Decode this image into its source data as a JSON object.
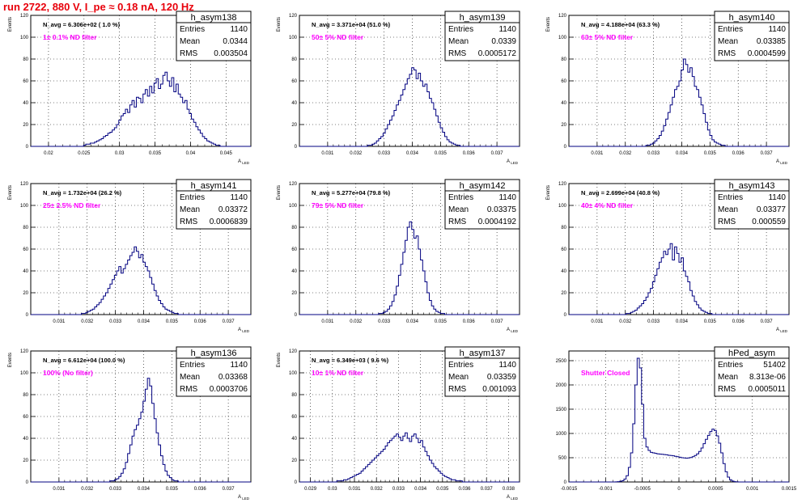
{
  "page_title": "run 2722,   880 V, I_pe ≈ 0.18 nA, 120 Hz",
  "colors": {
    "title": "#e8000b",
    "histogram": "#000080",
    "annotation": "#ff00ff",
    "grid": "#000000",
    "frame": "#000000"
  },
  "stats_labels": {
    "entries": "Entries",
    "mean": "Mean",
    "rms": "RMS"
  },
  "chart_data": [
    {
      "type": "bar",
      "name": "h_asym138",
      "ylabel": "Events",
      "xlabel": "A_LED",
      "xlim": [
        0.0175,
        0.0485
      ],
      "ylim": [
        0,
        120
      ],
      "xticks": [
        "0.02",
        "0.025",
        "0.03",
        "0.035",
        "0.04",
        "0.045"
      ],
      "yticks": [
        "0",
        "20",
        "40",
        "60",
        "80",
        "100",
        "120"
      ],
      "grid": true,
      "nbins": 100,
      "values": [
        0,
        0,
        0,
        0,
        0,
        0,
        0,
        0,
        0,
        0,
        0,
        0,
        0,
        0,
        0,
        0,
        0,
        0,
        0,
        0,
        0,
        0,
        0,
        0,
        1,
        2,
        2,
        3,
        3,
        4,
        5,
        6,
        7,
        9,
        10,
        12,
        13,
        15,
        17,
        20,
        24,
        28,
        30,
        34,
        31,
        38,
        42,
        36,
        45,
        44,
        40,
        48,
        52,
        46,
        55,
        49,
        58,
        62,
        53,
        57,
        65,
        68,
        60,
        55,
        63,
        50,
        57,
        48,
        45,
        40,
        42,
        34,
        30,
        25,
        22,
        18,
        15,
        12,
        9,
        7,
        5,
        4,
        3,
        2,
        1,
        1,
        0,
        0,
        0,
        0,
        0,
        0,
        0,
        0,
        0,
        0,
        0,
        0,
        0,
        0
      ],
      "stats": {
        "entries": "1140",
        "mean": "0.0344",
        "rms": "0.003504"
      },
      "annotations": [
        "N_avg = 6.306e+02 ( 1.0 %)",
        "1± 0.1% ND filter"
      ]
    },
    {
      "type": "bar",
      "name": "h_asym139",
      "ylabel": "Events",
      "xlabel": "A_LED",
      "xlim": [
        0.03,
        0.0378
      ],
      "ylim": [
        0,
        120
      ],
      "xticks": [
        "0.031",
        "0.032",
        "0.033",
        "0.034",
        "0.035",
        "0.036",
        "0.037"
      ],
      "yticks": [
        "0",
        "20",
        "40",
        "60",
        "80",
        "100",
        "120"
      ],
      "grid": true,
      "nbins": 100,
      "values": [
        0,
        0,
        0,
        0,
        0,
        0,
        0,
        0,
        0,
        0,
        0,
        0,
        0,
        0,
        0,
        0,
        0,
        0,
        0,
        0,
        0,
        0,
        0,
        0,
        0,
        0,
        0,
        0,
        0,
        0,
        0,
        1,
        1,
        2,
        3,
        5,
        7,
        9,
        12,
        16,
        20,
        24,
        28,
        33,
        38,
        42,
        47,
        52,
        57,
        62,
        66,
        72,
        70,
        62,
        67,
        60,
        55,
        57,
        50,
        44,
        40,
        34,
        28,
        22,
        17,
        13,
        9,
        6,
        4,
        3,
        2,
        1,
        1,
        0,
        0,
        0,
        0,
        0,
        0,
        0,
        0,
        0,
        0,
        0,
        0,
        0,
        0,
        0,
        0,
        0,
        0,
        0,
        0,
        0,
        0,
        0,
        0,
        0,
        0,
        0
      ],
      "stats": {
        "entries": "1140",
        "mean": "0.0339",
        "rms": "0.0005172"
      },
      "annotations": [
        "N_avg = 3.371e+04 (51.0 %)",
        "50± 5% ND filter"
      ]
    },
    {
      "type": "bar",
      "name": "h_asym140",
      "ylabel": "Events",
      "xlabel": "A_LED",
      "xlim": [
        0.03,
        0.0378
      ],
      "ylim": [
        0,
        120
      ],
      "xticks": [
        "0.031",
        "0.032",
        "0.033",
        "0.034",
        "0.035",
        "0.036",
        "0.037"
      ],
      "yticks": [
        "0",
        "20",
        "40",
        "60",
        "80",
        "100",
        "120"
      ],
      "grid": true,
      "nbins": 100,
      "values": [
        0,
        0,
        0,
        0,
        0,
        0,
        0,
        0,
        0,
        0,
        0,
        0,
        0,
        0,
        0,
        0,
        0,
        0,
        0,
        0,
        0,
        0,
        0,
        0,
        0,
        0,
        0,
        0,
        0,
        0,
        0,
        0,
        0,
        0,
        0,
        1,
        1,
        2,
        3,
        5,
        7,
        10,
        14,
        19,
        25,
        31,
        38,
        45,
        52,
        55,
        60,
        70,
        80,
        75,
        68,
        72,
        64,
        55,
        52,
        45,
        38,
        30,
        22,
        15,
        10,
        6,
        4,
        3,
        2,
        1,
        1,
        0,
        0,
        0,
        0,
        0,
        0,
        0,
        0,
        0,
        0,
        0,
        0,
        0,
        0,
        0,
        0,
        0,
        0,
        0,
        0,
        0,
        0,
        0,
        0,
        0,
        0,
        0,
        0,
        0
      ],
      "stats": {
        "entries": "1140",
        "mean": "0.03385",
        "rms": "0.0004599"
      },
      "annotations": [
        "N_avg = 4.188e+04 (63.3 %)",
        "63± 5% ND filter"
      ]
    },
    {
      "type": "bar",
      "name": "h_asym141",
      "ylabel": "Events",
      "xlabel": "A_LED",
      "xlim": [
        0.03,
        0.0378
      ],
      "ylim": [
        0,
        120
      ],
      "xticks": [
        "0.031",
        "0.032",
        "0.033",
        "0.034",
        "0.035",
        "0.036",
        "0.037"
      ],
      "yticks": [
        "0",
        "20",
        "40",
        "60",
        "80",
        "100",
        "120"
      ],
      "grid": true,
      "nbins": 100,
      "values": [
        0,
        0,
        0,
        0,
        0,
        0,
        0,
        0,
        0,
        0,
        0,
        0,
        0,
        0,
        0,
        0,
        0,
        0,
        0,
        0,
        0,
        0,
        0,
        1,
        1,
        2,
        3,
        4,
        5,
        7,
        9,
        11,
        14,
        17,
        20,
        24,
        28,
        32,
        36,
        40,
        44,
        38,
        42,
        46,
        50,
        54,
        57,
        62,
        58,
        52,
        55,
        48,
        44,
        40,
        34,
        28,
        22,
        17,
        13,
        10,
        7,
        5,
        4,
        3,
        2,
        1,
        1,
        0,
        0,
        0,
        0,
        0,
        0,
        0,
        0,
        0,
        0,
        0,
        0,
        0,
        0,
        0,
        0,
        0,
        0,
        0,
        0,
        0,
        0,
        0,
        0,
        0,
        0,
        0,
        0,
        0,
        0,
        0,
        0,
        0
      ],
      "stats": {
        "entries": "1140",
        "mean": "0.03372",
        "rms": "0.0006839"
      },
      "annotations": [
        "N_avg = 1.732e+04 (26.2 %)",
        "25± 2.5% ND filter"
      ]
    },
    {
      "type": "bar",
      "name": "h_asym142",
      "ylabel": "Events",
      "xlabel": "A_LED",
      "xlim": [
        0.03,
        0.0378
      ],
      "ylim": [
        0,
        120
      ],
      "xticks": [
        "0.031",
        "0.032",
        "0.033",
        "0.034",
        "0.035",
        "0.036",
        "0.037"
      ],
      "yticks": [
        "0",
        "20",
        "40",
        "60",
        "80",
        "100",
        "120"
      ],
      "grid": true,
      "nbins": 100,
      "values": [
        0,
        0,
        0,
        0,
        0,
        0,
        0,
        0,
        0,
        0,
        0,
        0,
        0,
        0,
        0,
        0,
        0,
        0,
        0,
        0,
        0,
        0,
        0,
        0,
        0,
        0,
        0,
        0,
        0,
        0,
        0,
        0,
        0,
        0,
        0,
        0,
        1,
        1,
        2,
        3,
        5,
        8,
        12,
        18,
        26,
        36,
        46,
        57,
        68,
        80,
        85,
        78,
        70,
        72,
        60,
        50,
        40,
        30,
        20,
        13,
        8,
        5,
        3,
        2,
        1,
        1,
        0,
        0,
        0,
        0,
        0,
        0,
        0,
        0,
        0,
        0,
        0,
        0,
        0,
        0,
        0,
        0,
        0,
        0,
        0,
        0,
        0,
        0,
        0,
        0,
        0,
        0,
        0,
        0,
        0,
        0,
        0,
        0,
        0,
        0
      ],
      "stats": {
        "entries": "1140",
        "mean": "0.03375",
        "rms": "0.0004192"
      },
      "annotations": [
        "N_avg = 5.277e+04 (79.8 %)",
        "79± 5% ND filter"
      ]
    },
    {
      "type": "bar",
      "name": "h_asym143",
      "ylabel": "Events",
      "xlabel": "A_LED",
      "xlim": [
        0.03,
        0.0378
      ],
      "ylim": [
        0,
        120
      ],
      "xticks": [
        "0.031",
        "0.032",
        "0.033",
        "0.034",
        "0.035",
        "0.036",
        "0.037"
      ],
      "yticks": [
        "0",
        "20",
        "40",
        "60",
        "80",
        "100",
        "120"
      ],
      "grid": true,
      "nbins": 100,
      "values": [
        0,
        0,
        0,
        0,
        0,
        0,
        0,
        0,
        0,
        0,
        0,
        0,
        0,
        0,
        0,
        0,
        0,
        0,
        0,
        0,
        0,
        0,
        0,
        0,
        0,
        0,
        1,
        1,
        2,
        3,
        4,
        6,
        8,
        10,
        13,
        16,
        20,
        24,
        30,
        36,
        42,
        48,
        52,
        58,
        55,
        60,
        65,
        50,
        62,
        56,
        48,
        52,
        40,
        35,
        30,
        22,
        17,
        12,
        9,
        6,
        4,
        3,
        2,
        1,
        1,
        0,
        0,
        0,
        0,
        0,
        0,
        0,
        0,
        0,
        0,
        0,
        0,
        0,
        0,
        0,
        0,
        0,
        0,
        0,
        0,
        0,
        0,
        0,
        0,
        0,
        0,
        0,
        0,
        0,
        0,
        0,
        0,
        0,
        0,
        0
      ],
      "stats": {
        "entries": "1140",
        "mean": "0.03377",
        "rms": "0.000559"
      },
      "annotations": [
        "N_avg = 2.699e+04 (40.8 %)",
        "40± 4% ND filter"
      ]
    },
    {
      "type": "bar",
      "name": "h_asym136",
      "ylabel": "Events",
      "xlabel": "A_LED",
      "xlim": [
        0.03,
        0.0378
      ],
      "ylim": [
        0,
        120
      ],
      "xticks": [
        "0.031",
        "0.032",
        "0.033",
        "0.034",
        "0.035",
        "0.036",
        "0.037"
      ],
      "yticks": [
        "0",
        "20",
        "40",
        "60",
        "80",
        "100",
        "120"
      ],
      "grid": true,
      "nbins": 100,
      "values": [
        0,
        0,
        0,
        0,
        0,
        0,
        0,
        0,
        0,
        0,
        0,
        0,
        0,
        0,
        0,
        0,
        0,
        0,
        0,
        0,
        0,
        0,
        0,
        0,
        0,
        0,
        0,
        0,
        0,
        0,
        0,
        0,
        0,
        0,
        0,
        0,
        1,
        1,
        2,
        3,
        5,
        8,
        12,
        18,
        26,
        34,
        42,
        48,
        52,
        58,
        64,
        74,
        85,
        95,
        88,
        72,
        58,
        45,
        34,
        24,
        16,
        10,
        6,
        4,
        2,
        1,
        1,
        0,
        0,
        0,
        0,
        0,
        0,
        0,
        0,
        0,
        0,
        0,
        0,
        0,
        0,
        0,
        0,
        0,
        0,
        0,
        0,
        0,
        0,
        0,
        0,
        0,
        0,
        0,
        0,
        0,
        0,
        0,
        0,
        0
      ],
      "stats": {
        "entries": "1140",
        "mean": "0.03368",
        "rms": "0.0003706"
      },
      "annotations": [
        "N_avg = 6.612e+04 (100.0 %)",
        "100% (No filter)"
      ]
    },
    {
      "type": "bar",
      "name": "h_asym137",
      "ylabel": "Events",
      "xlabel": "A_LED",
      "xlim": [
        0.0285,
        0.0385
      ],
      "ylim": [
        0,
        120
      ],
      "xticks": [
        "0.029",
        "0.03",
        "0.031",
        "0.032",
        "0.033",
        "0.034",
        "0.035",
        "0.036",
        "0.037",
        "0.038"
      ],
      "yticks": [
        "0",
        "20",
        "40",
        "60",
        "80",
        "100",
        "120"
      ],
      "grid": true,
      "nbins": 100,
      "values": [
        0,
        0,
        0,
        0,
        0,
        0,
        0,
        0,
        0,
        0,
        0,
        0,
        0,
        0,
        0,
        0,
        0,
        1,
        1,
        1,
        2,
        2,
        3,
        4,
        5,
        6,
        7,
        8,
        10,
        12,
        14,
        16,
        18,
        20,
        22,
        24,
        26,
        28,
        30,
        33,
        36,
        38,
        40,
        42,
        44,
        41,
        38,
        42,
        45,
        40,
        37,
        42,
        44,
        40,
        36,
        38,
        32,
        28,
        24,
        20,
        17,
        14,
        12,
        10,
        8,
        6,
        5,
        4,
        3,
        2,
        2,
        1,
        1,
        1,
        0,
        0,
        0,
        0,
        0,
        0,
        0,
        0,
        0,
        0,
        0,
        0,
        0,
        0,
        0,
        0,
        0,
        0,
        0,
        0,
        0,
        0,
        0,
        0,
        0,
        0
      ],
      "stats": {
        "entries": "1140",
        "mean": "0.03359",
        "rms": "0.001093"
      },
      "annotations": [
        "N_avg = 6.349e+03 ( 9.6 %)",
        "10± 1% ND filter"
      ]
    },
    {
      "type": "bar",
      "name": "hPed_asym",
      "ylabel": "",
      "xlabel": "",
      "xlim": [
        -0.0015,
        0.0015
      ],
      "ylim": [
        0,
        2700
      ],
      "xticks": [
        "-0.0015",
        "-0.001",
        "-0.0005",
        "0",
        "0.0005",
        "0.001",
        "0.0015"
      ],
      "yticks": [
        "0",
        "500",
        "1000",
        "1500",
        "2000",
        "2500"
      ],
      "grid": true,
      "nbins": 100,
      "values": [
        0,
        0,
        0,
        0,
        0,
        0,
        0,
        0,
        0,
        0,
        0,
        0,
        0,
        0,
        0,
        0,
        0,
        0,
        0,
        0,
        1,
        3,
        6,
        12,
        25,
        60,
        130,
        300,
        600,
        1200,
        2000,
        2550,
        2350,
        1600,
        900,
        720,
        650,
        610,
        600,
        590,
        580,
        575,
        570,
        565,
        560,
        550,
        545,
        540,
        530,
        520,
        510,
        500,
        495,
        490,
        495,
        505,
        520,
        545,
        580,
        630,
        700,
        790,
        880,
        960,
        1040,
        1090,
        1060,
        950,
        800,
        600,
        380,
        210,
        100,
        45,
        18,
        6,
        2,
        1,
        0,
        0,
        0,
        0,
        0,
        0,
        0,
        0,
        0,
        0,
        0,
        0,
        0,
        0,
        0,
        0,
        0,
        0,
        0,
        0,
        0,
        0
      ],
      "stats": {
        "entries": "51402",
        "mean": "8.313e-06",
        "rms": "0.0005011"
      },
      "annotations": [
        "Shutter Closed"
      ]
    }
  ]
}
